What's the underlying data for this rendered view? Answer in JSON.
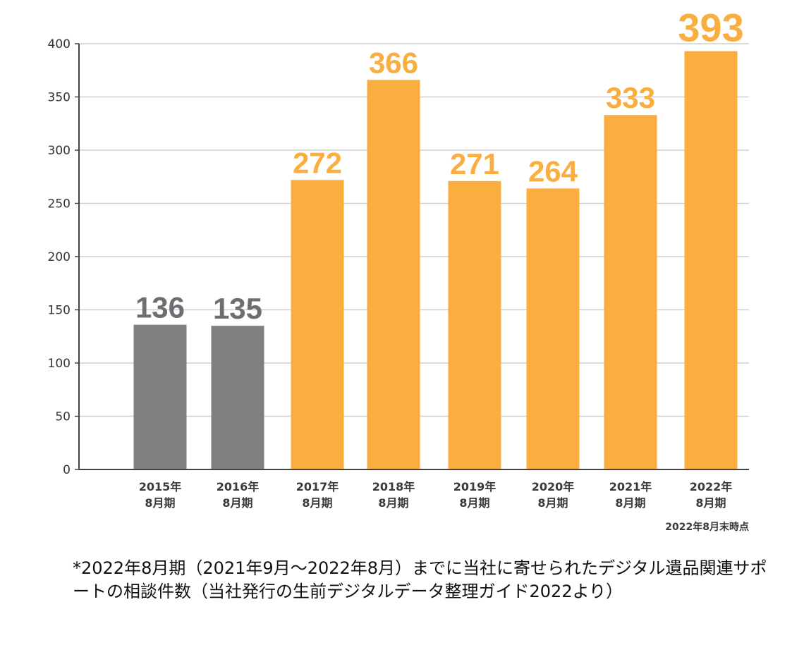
{
  "chart_data": {
    "type": "bar",
    "categories": [
      {
        "year": "2015年",
        "period": "8月期"
      },
      {
        "year": "2016年",
        "period": "8月期"
      },
      {
        "year": "2017年",
        "period": "8月期"
      },
      {
        "year": "2018年",
        "period": "8月期"
      },
      {
        "year": "2019年",
        "period": "8月期"
      },
      {
        "year": "2020年",
        "period": "8月期"
      },
      {
        "year": "2021年",
        "period": "8月期"
      },
      {
        "year": "2022年",
        "period": "8月期"
      }
    ],
    "values": [
      136,
      135,
      272,
      366,
      271,
      264,
      333,
      393
    ],
    "value_labels": [
      "136",
      "135",
      "272",
      "366",
      "271",
      "264",
      "333",
      "393"
    ],
    "bar_colors": [
      "#808083",
      "#808083",
      "#f9ae3f",
      "#f9ae3f",
      "#f9ae3f",
      "#f9ae3f",
      "#f9ae3f",
      "#f9ae3f"
    ],
    "label_colors": [
      "#6d6e72",
      "#6d6e72",
      "#f9ae3f",
      "#f9ae3f",
      "#f9ae3f",
      "#f9ae3f",
      "#f9ae3f",
      "#f9ae3f"
    ],
    "ylim": [
      0,
      400
    ],
    "yticks": [
      0,
      50,
      100,
      150,
      200,
      250,
      300,
      350,
      400
    ],
    "grid": true,
    "as_of_note": "2022年8月末時点",
    "title": "",
    "xlabel": "",
    "ylabel": ""
  },
  "footnote": "*2022年8月期（2021年9月～2022年8月）までに当社に寄せられたデジタル遺品関連サポートの相談件数（当社発行の生前デジタルデータ整理ガイド2022より）"
}
